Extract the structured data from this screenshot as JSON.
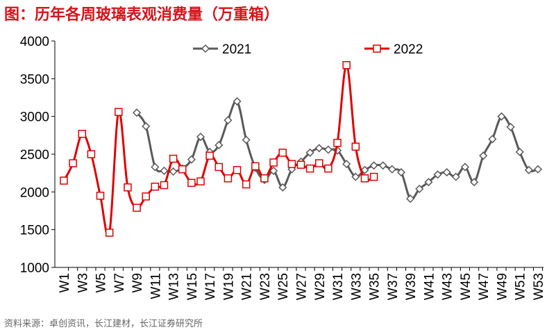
{
  "chart_data": {
    "type": "line",
    "title": "图：历年各周玻璃表观消费量（万重箱）",
    "source": "资料来源：卓创资讯，长江建材，长江证券研究所",
    "categories": [
      "W1",
      null,
      "W3",
      null,
      "W5",
      null,
      "W7",
      null,
      "W9",
      null,
      "W11",
      null,
      "W13",
      null,
      "W15",
      null,
      "W17",
      null,
      "W19",
      null,
      "W21",
      null,
      "W23",
      null,
      "W25",
      null,
      "W27",
      null,
      "W29",
      null,
      "W31",
      null,
      "W33",
      null,
      "W35",
      null,
      "W37",
      null,
      "W39",
      null,
      "W41",
      null,
      "W43",
      null,
      "W45",
      null,
      "W47",
      null,
      "W49",
      null,
      "W51",
      null,
      "W53"
    ],
    "series": [
      {
        "name": "2021",
        "color": "#595959",
        "marker": "diamond",
        "values": [
          null,
          null,
          null,
          null,
          null,
          null,
          null,
          null,
          3050,
          2870,
          2330,
          2280,
          2270,
          2310,
          2430,
          2730,
          2530,
          2620,
          2950,
          3200,
          2690,
          2320,
          2160,
          2280,
          2060,
          2300,
          2400,
          2520,
          2580,
          2560,
          2550,
          2370,
          2200,
          2290,
          2350,
          2350,
          2300,
          2260,
          1910,
          2040,
          2130,
          2230,
          2260,
          2200,
          2330,
          2130,
          2480,
          2700,
          3000,
          2860,
          2530,
          2290,
          2300
        ]
      },
      {
        "name": "2022",
        "color": "#e00000",
        "marker": "square",
        "values": [
          2150,
          2380,
          2770,
          2500,
          1950,
          1460,
          3060,
          2060,
          1790,
          1940,
          2070,
          2090,
          2440,
          2300,
          2120,
          2140,
          2480,
          2330,
          2180,
          2290,
          2100,
          2340,
          2180,
          2390,
          2520,
          2370,
          2360,
          2310,
          2380,
          2310,
          2650,
          3680,
          2600,
          2180,
          2200,
          null,
          null,
          null,
          null,
          null,
          null,
          null,
          null,
          null,
          null,
          null,
          null,
          null,
          null,
          null,
          null,
          null,
          null
        ]
      }
    ],
    "ylim": [
      1000,
      4000
    ],
    "yticks": [
      1000,
      1500,
      2000,
      2500,
      3000,
      3500,
      4000
    ]
  }
}
